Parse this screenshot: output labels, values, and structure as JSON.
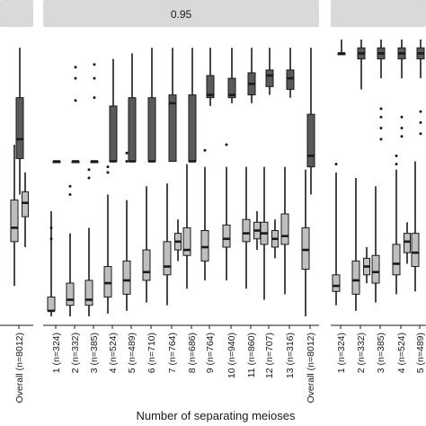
{
  "chart_data": {
    "type": "boxplot",
    "xlabel": "Number of separating meioses",
    "colors": {
      "upper_fill": "#5a5a5a",
      "lower_fill": "#bfbfbf",
      "strip": "#d9d9d9",
      "ink": "#1a1a1a"
    },
    "panels": [
      {
        "strip_label": "",
        "categories": [
          "Overall (n=8012)"
        ],
        "upper": [
          {
            "lo": 0.44,
            "q1": 0.57,
            "med": 0.64,
            "q3": 0.79,
            "hi": 0.97,
            "outliers": []
          }
        ],
        "lower": [
          {
            "lo": 0.11,
            "q1": 0.27,
            "med": 0.32,
            "q3": 0.42,
            "hi": 0.62,
            "outliers": []
          }
        ],
        "extra": [
          {
            "cat": 0,
            "lo": 0.25,
            "q1": 0.36,
            "med": 0.41,
            "q3": 0.45,
            "hi": 0.52
          }
        ]
      },
      {
        "strip_label": "0.95",
        "categories": [
          "1 (n=324)",
          "2 (n=332)",
          "3 (n=385)",
          "4 (n=524)",
          "5 (n=489)",
          "6 (n=710)",
          "7 (n=764)",
          "8 (n=686)",
          "9 (n=764)",
          "10 (n=940)",
          "11 (n=860)",
          "12 (n=707)",
          "13 (n=316)",
          "Overall (n=8012)"
        ],
        "upper": [
          {
            "lo": 0.56,
            "q1": 0.56,
            "med": 0.56,
            "q3": 0.56,
            "hi": 0.56,
            "outliers": []
          },
          {
            "lo": 0.56,
            "q1": 0.56,
            "med": 0.56,
            "q3": 0.56,
            "hi": 0.56,
            "outliers": [
              0.9,
              0.86,
              0.78
            ]
          },
          {
            "lo": 0.56,
            "q1": 0.56,
            "med": 0.56,
            "q3": 0.56,
            "hi": 0.56,
            "outliers": [
              0.91,
              0.86,
              0.79
            ]
          },
          {
            "lo": 0.56,
            "q1": 0.56,
            "med": 0.56,
            "q3": 0.76,
            "hi": 0.93,
            "outliers": []
          },
          {
            "lo": 0.56,
            "q1": 0.56,
            "med": 0.56,
            "q3": 0.79,
            "hi": 0.95,
            "outliers": []
          },
          {
            "lo": 0.56,
            "q1": 0.56,
            "med": 0.56,
            "q3": 0.79,
            "hi": 0.97,
            "outliers": []
          },
          {
            "lo": 0.56,
            "q1": 0.56,
            "med": 0.77,
            "q3": 0.8,
            "hi": 0.97,
            "outliers": []
          },
          {
            "lo": 0.56,
            "q1": 0.56,
            "med": 0.56,
            "q3": 0.8,
            "hi": 0.97,
            "outliers": []
          },
          {
            "lo": 0.76,
            "q1": 0.79,
            "med": 0.8,
            "q3": 0.87,
            "hi": 0.97,
            "outliers": []
          },
          {
            "lo": 0.77,
            "q1": 0.79,
            "med": 0.8,
            "q3": 0.86,
            "hi": 0.97,
            "outliers": []
          },
          {
            "lo": 0.77,
            "q1": 0.8,
            "med": 0.84,
            "q3": 0.88,
            "hi": 0.97,
            "outliers": []
          },
          {
            "lo": 0.8,
            "q1": 0.83,
            "med": 0.87,
            "q3": 0.89,
            "hi": 0.97,
            "outliers": []
          },
          {
            "lo": 0.79,
            "q1": 0.82,
            "med": 0.86,
            "q3": 0.89,
            "hi": 0.97,
            "outliers": []
          },
          {
            "lo": 0.44,
            "q1": 0.54,
            "med": 0.58,
            "q3": 0.73,
            "hi": 0.97,
            "outliers": []
          }
        ],
        "lower": [
          {
            "lo": 0.0,
            "q1": 0.02,
            "med": 0.02,
            "q3": 0.07,
            "hi": 0.38,
            "outliers": [
              0.32,
              0.28
            ]
          },
          {
            "lo": 0.0,
            "q1": 0.04,
            "med": 0.06,
            "q3": 0.12,
            "hi": 0.3,
            "outliers": [
              0.47,
              0.44
            ]
          },
          {
            "lo": 0.0,
            "q1": 0.04,
            "med": 0.06,
            "q3": 0.13,
            "hi": 0.32,
            "outliers": [
              0.53,
              0.5
            ]
          },
          {
            "lo": 0.01,
            "q1": 0.07,
            "med": 0.12,
            "q3": 0.18,
            "hi": 0.44,
            "outliers": [
              0.54,
              0.52
            ]
          },
          {
            "lo": 0.02,
            "q1": 0.08,
            "med": 0.13,
            "q3": 0.2,
            "hi": 0.42,
            "outliers": [
              0.59,
              0.56
            ]
          },
          {
            "lo": 0.05,
            "q1": 0.13,
            "med": 0.16,
            "q3": 0.24,
            "hi": 0.47,
            "outliers": []
          },
          {
            "lo": 0.04,
            "q1": 0.15,
            "med": 0.18,
            "q3": 0.27,
            "hi": 0.48,
            "outliers": []
          },
          {
            "lo": 0.1,
            "q1": 0.22,
            "med": 0.24,
            "q3": 0.32,
            "hi": 0.55,
            "outliers": []
          },
          {
            "lo": 0.13,
            "q1": 0.2,
            "med": 0.25,
            "q3": 0.31,
            "hi": 0.54,
            "outliers": [
              0.6
            ]
          },
          {
            "lo": 0.13,
            "q1": 0.25,
            "med": 0.28,
            "q3": 0.33,
            "hi": 0.54,
            "outliers": [
              0.62
            ]
          },
          {
            "lo": 0.1,
            "q1": 0.27,
            "med": 0.3,
            "q3": 0.35,
            "hi": 0.54,
            "outliers": []
          },
          {
            "lo": 0.06,
            "q1": 0.26,
            "med": 0.3,
            "q3": 0.34,
            "hi": 0.54,
            "outliers": []
          },
          {
            "lo": 0.08,
            "q1": 0.26,
            "med": 0.29,
            "q3": 0.37,
            "hi": 0.54,
            "outliers": []
          },
          {
            "lo": 0.0,
            "q1": 0.17,
            "med": 0.24,
            "q3": 0.32,
            "hi": 0.53,
            "outliers": []
          }
        ],
        "extra": [
          {
            "cat": 6,
            "lo": 0.2,
            "q1": 0.24,
            "med": 0.27,
            "q3": 0.3,
            "hi": 0.35
          },
          {
            "cat": 10,
            "lo": 0.24,
            "q1": 0.28,
            "med": 0.31,
            "q3": 0.34,
            "hi": 0.38
          },
          {
            "cat": 11,
            "lo": 0.21,
            "q1": 0.25,
            "med": 0.28,
            "q3": 0.31,
            "hi": 0.35
          }
        ]
      },
      {
        "strip_label": "",
        "categories": [
          "1 (n=324)",
          "2 (n=332)",
          "3 (n=385)",
          "4 (n=524)",
          "5 (n=489)"
        ],
        "upper": [
          {
            "lo": 0.95,
            "q1": 0.95,
            "med": 0.95,
            "q3": 0.95,
            "hi": 1.0,
            "outliers": []
          },
          {
            "lo": 0.82,
            "q1": 0.93,
            "med": 0.95,
            "q3": 0.97,
            "hi": 1.0,
            "outliers": []
          },
          {
            "lo": 0.86,
            "q1": 0.93,
            "med": 0.95,
            "q3": 0.97,
            "hi": 1.0,
            "outliers": [
              0.75,
              0.72,
              0.68,
              0.64
            ]
          },
          {
            "lo": 0.86,
            "q1": 0.93,
            "med": 0.95,
            "q3": 0.97,
            "hi": 1.0,
            "outliers": [
              0.72,
              0.68,
              0.65
            ]
          },
          {
            "lo": 0.86,
            "q1": 0.93,
            "med": 0.95,
            "q3": 0.97,
            "hi": 1.0,
            "outliers": [
              0.74,
              0.7,
              0.66
            ]
          }
        ],
        "lower": [
          {
            "lo": 0.04,
            "q1": 0.09,
            "med": 0.11,
            "q3": 0.15,
            "hi": 0.52,
            "outliers": [
              0.55
            ]
          },
          {
            "lo": 0.02,
            "q1": 0.08,
            "med": 0.13,
            "q3": 0.2,
            "hi": 0.5,
            "outliers": []
          },
          {
            "lo": 0.05,
            "q1": 0.12,
            "med": 0.16,
            "q3": 0.22,
            "hi": 0.47,
            "outliers": []
          },
          {
            "lo": 0.08,
            "q1": 0.15,
            "med": 0.19,
            "q3": 0.26,
            "hi": 0.53,
            "outliers": [
              0.58,
              0.55
            ]
          },
          {
            "lo": 0.09,
            "q1": 0.18,
            "med": 0.23,
            "q3": 0.3,
            "hi": 0.56,
            "outliers": []
          }
        ],
        "extra": [
          {
            "cat": 1,
            "lo": 0.12,
            "q1": 0.15,
            "med": 0.18,
            "q3": 0.21,
            "hi": 0.25
          },
          {
            "cat": 3,
            "lo": 0.19,
            "q1": 0.23,
            "med": 0.27,
            "q3": 0.3,
            "hi": 0.34
          }
        ]
      }
    ]
  }
}
